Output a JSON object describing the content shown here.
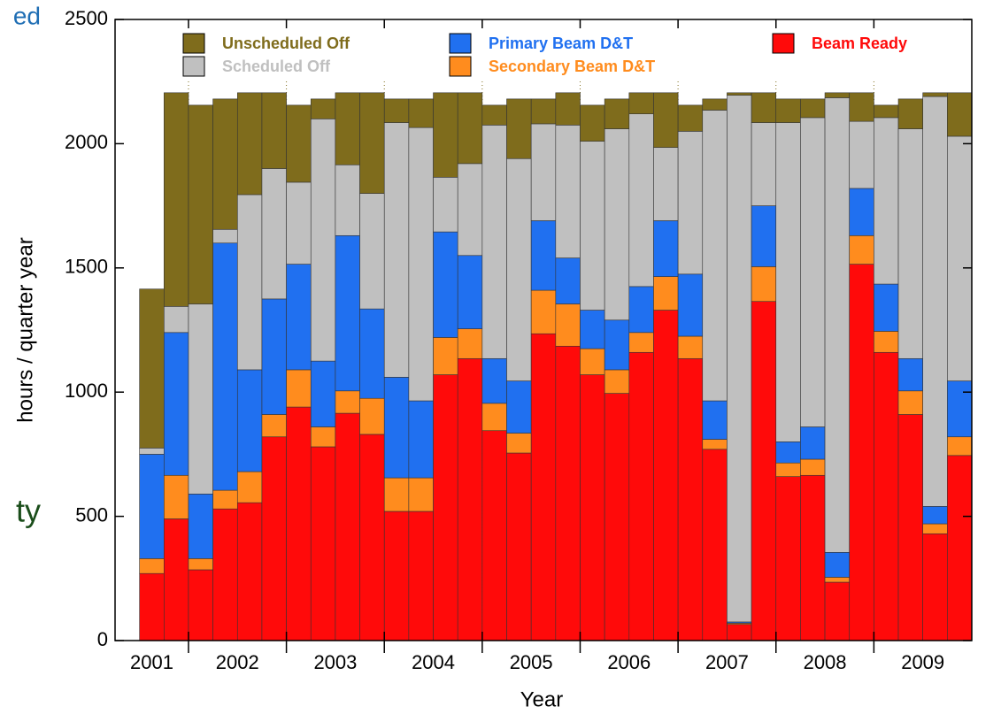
{
  "chart_data": {
    "type": "stacked_bar",
    "annotations": [
      "ed",
      "ty"
    ],
    "x_label": "Year",
    "y_label": "hours / quarter year",
    "x": [
      2001.5,
      2001.75,
      2002,
      2002.25,
      2002.5,
      2002.75,
      2003,
      2003.25,
      2003.5,
      2003.75,
      2004,
      2004.25,
      2004.5,
      2004.75,
      2005,
      2005.25,
      2005.5,
      2005.75,
      2006,
      2006.25,
      2006.5,
      2006.75,
      2007,
      2007.25,
      2007.5,
      2007.75,
      2008,
      2008.25,
      2008.5,
      2008.75,
      2009,
      2009.25,
      2009.5,
      2009.75
    ],
    "xlim": [
      2001.25,
      2010
    ],
    "xticks": [
      {
        "value": 2001.5,
        "label": "2001"
      },
      {
        "value": 2002.5,
        "label": "2002"
      },
      {
        "value": 2003.5,
        "label": "2003"
      },
      {
        "value": 2004.5,
        "label": "2004"
      },
      {
        "value": 2005.5,
        "label": "2005"
      },
      {
        "value": 2006.5,
        "label": "2006"
      },
      {
        "value": 2007.5,
        "label": "2007"
      },
      {
        "value": 2008.5,
        "label": "2008"
      },
      {
        "value": 2009.5,
        "label": "2009"
      }
    ],
    "ylim": [
      0,
      2500
    ],
    "yticks": [
      0,
      500,
      1000,
      1500,
      2000,
      2500
    ],
    "series": [
      {
        "name": "Beam Ready",
        "color": "#ff0a0a",
        "values": [
          270,
          490,
          285,
          530,
          555,
          820,
          940,
          780,
          915,
          830,
          520,
          520,
          1070,
          1135,
          845,
          755,
          1235,
          1185,
          1070,
          995,
          1160,
          1330,
          1135,
          770,
          65,
          1365,
          660,
          665,
          235,
          1515,
          1160,
          910,
          430,
          745
        ]
      },
      {
        "name": "Secondary Beam D&T",
        "color": "#ff8c1e",
        "values": [
          60,
          175,
          45,
          75,
          125,
          90,
          150,
          80,
          90,
          145,
          135,
          135,
          150,
          120,
          110,
          80,
          175,
          170,
          105,
          95,
          80,
          135,
          90,
          40,
          5,
          140,
          55,
          65,
          20,
          115,
          85,
          95,
          40,
          75
        ]
      },
      {
        "name": "Primary Beam D&T",
        "color": "#2070f0",
        "values": [
          420,
          575,
          260,
          995,
          410,
          465,
          425,
          265,
          625,
          360,
          405,
          310,
          425,
          295,
          180,
          210,
          280,
          185,
          155,
          200,
          185,
          225,
          250,
          155,
          5,
          245,
          85,
          130,
          100,
          190,
          190,
          130,
          70,
          225
        ]
      },
      {
        "name": "Scheduled Off",
        "color": "#c0c0c0",
        "values": [
          25,
          105,
          765,
          55,
          705,
          525,
          330,
          975,
          285,
          465,
          1025,
          1100,
          220,
          370,
          940,
          895,
          390,
          535,
          680,
          770,
          695,
          295,
          575,
          1170,
          2120,
          335,
          1285,
          1245,
          1830,
          270,
          670,
          925,
          1650,
          985
        ]
      },
      {
        "name": "Unscheduled Off",
        "color": "#7f6c1c",
        "values": [
          640,
          860,
          800,
          525,
          410,
          305,
          310,
          80,
          290,
          405,
          95,
          115,
          340,
          285,
          80,
          240,
          100,
          130,
          145,
          120,
          85,
          220,
          105,
          45,
          10,
          120,
          95,
          75,
          20,
          115,
          50,
          120,
          15,
          175
        ]
      }
    ]
  }
}
